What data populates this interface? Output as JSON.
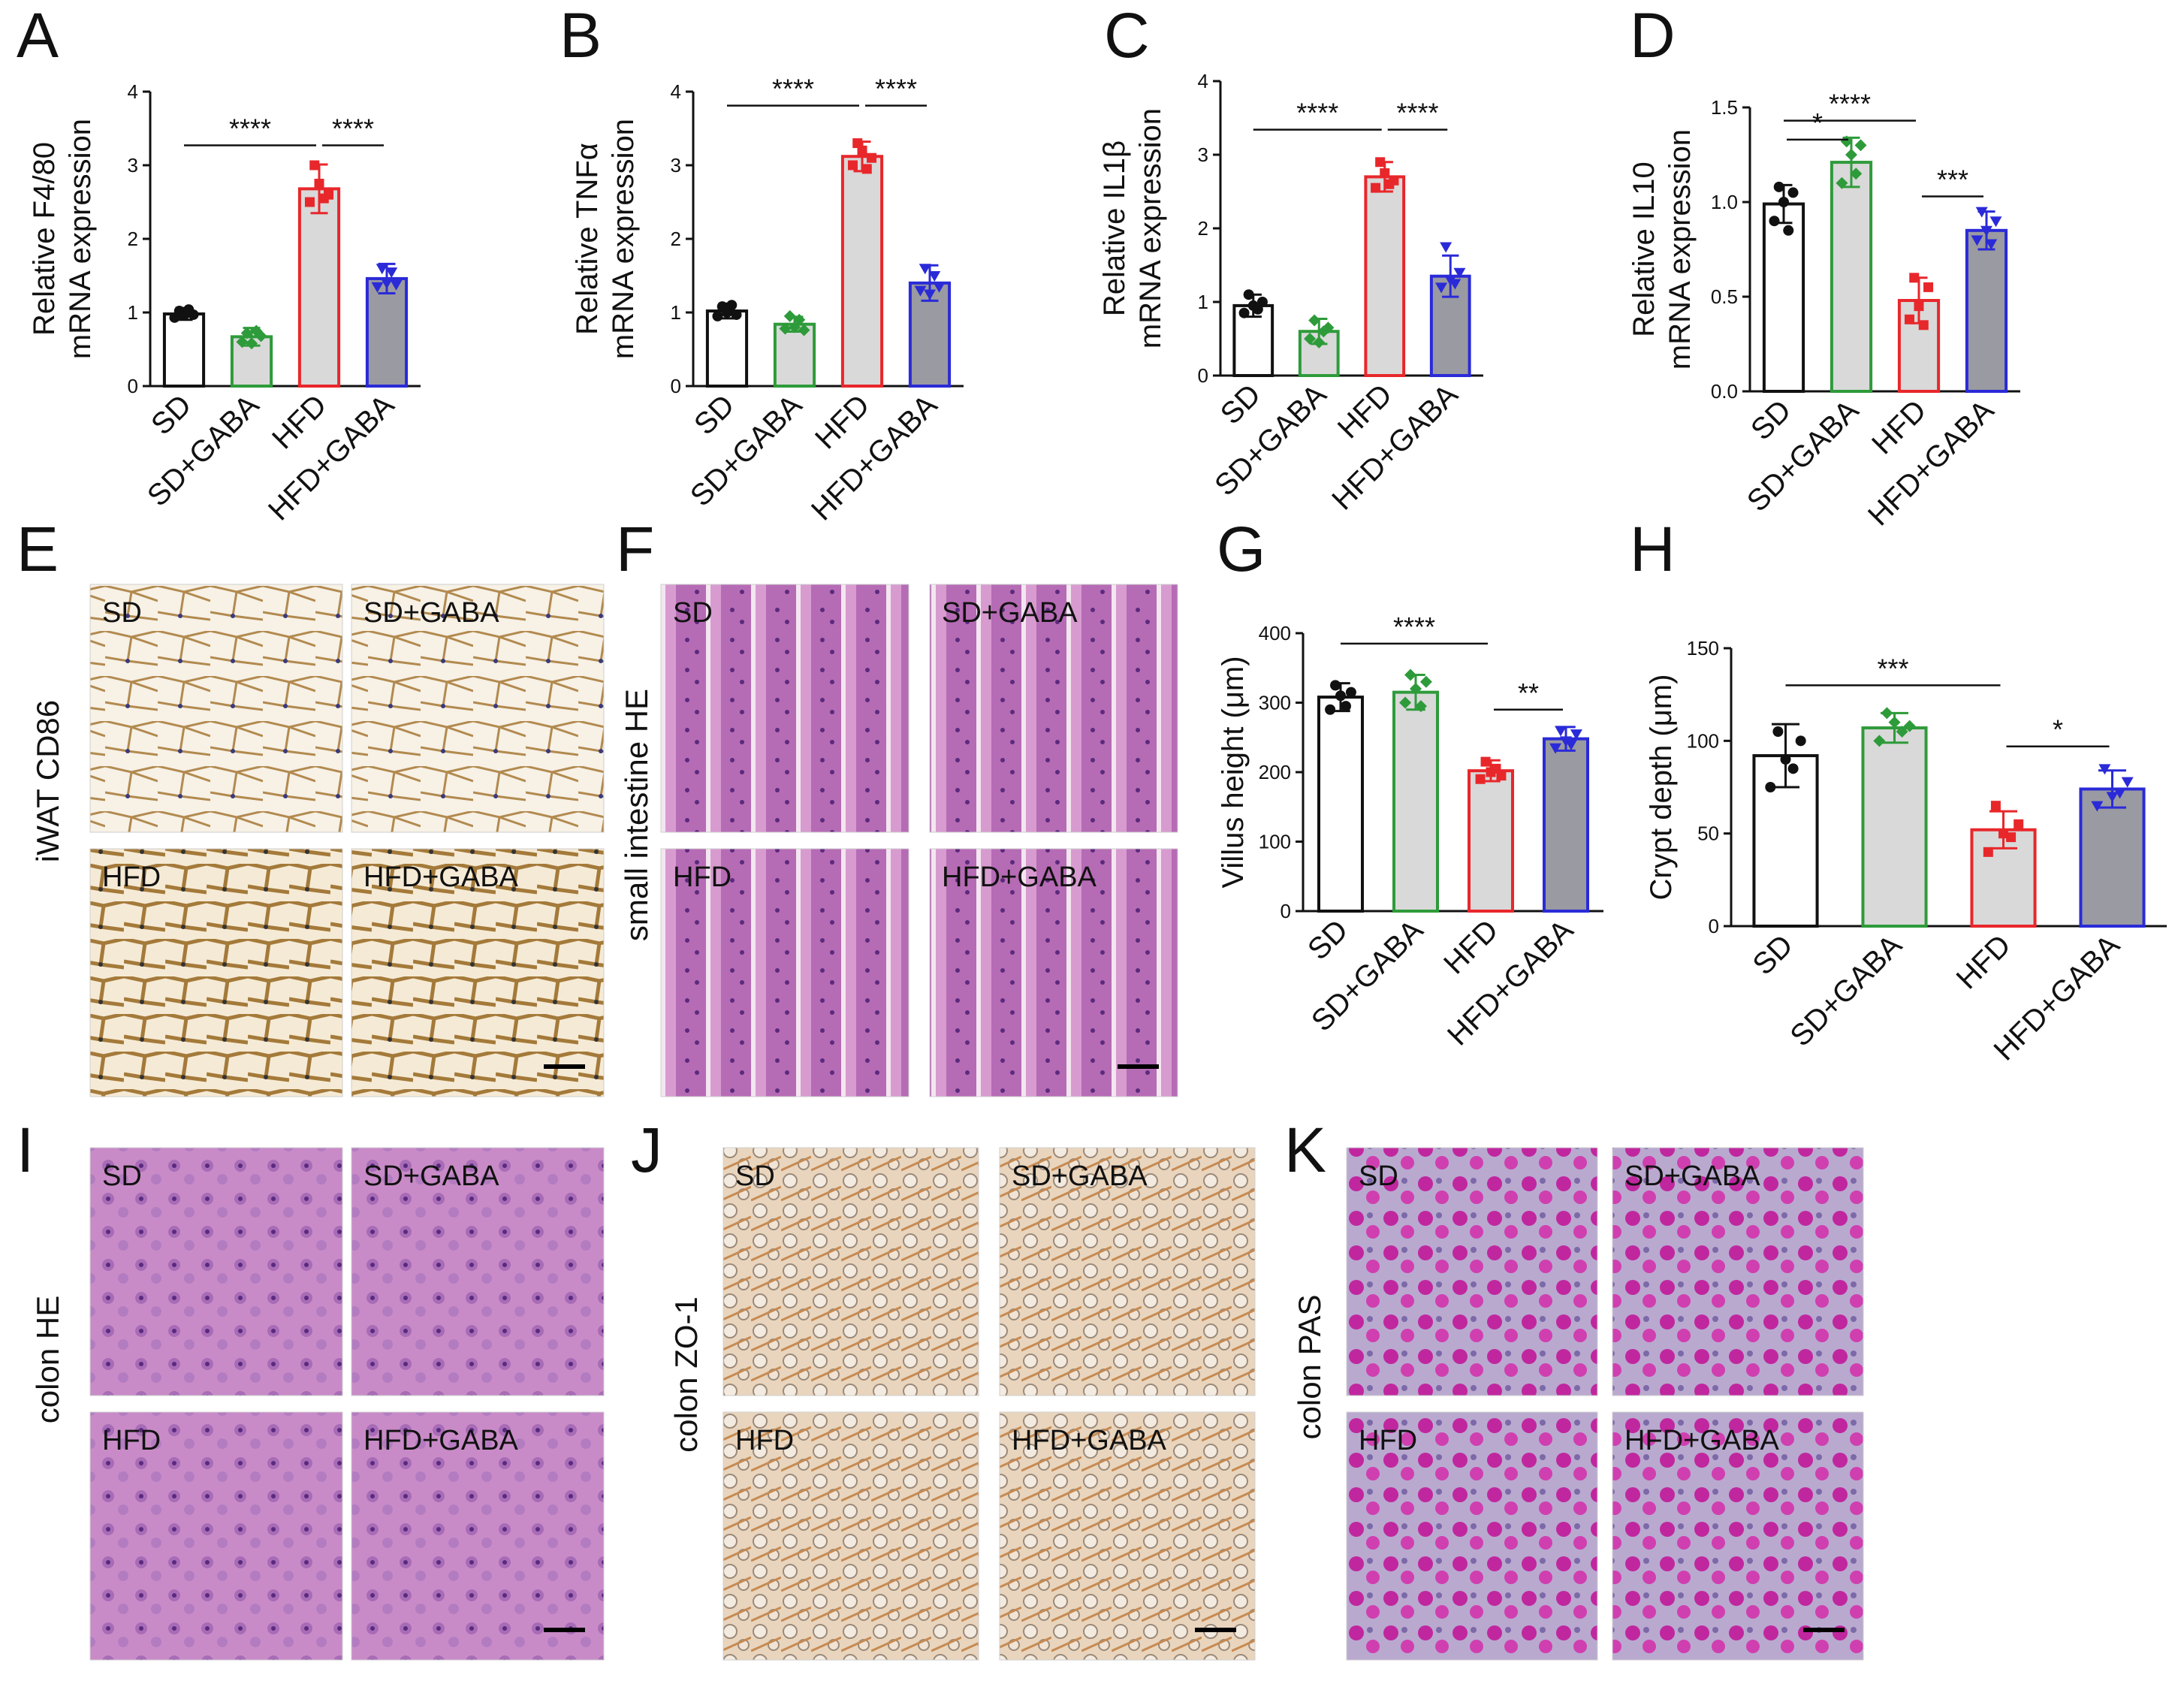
{
  "panel_letters": [
    "A",
    "B",
    "C",
    "D",
    "E",
    "F",
    "G",
    "H",
    "I",
    "J",
    "K"
  ],
  "groups": [
    "SD",
    "SD+GABA",
    "HFD",
    "HFD+GABA"
  ],
  "colors": {
    "SD": "#111111",
    "SD+GABA": "#2e9b3a",
    "HFD": "#e8272b",
    "HFD+GABA": "#2a2ad8",
    "bar_fill_gray": "#d9d9d9",
    "bar_fill_dark": "#9a9aa2",
    "bar_fill_white": "#ffffff"
  },
  "chart_data": [
    {
      "panel": "A",
      "type": "bar",
      "ylabel": [
        "Relative F4/80",
        "mRNA expression"
      ],
      "categories": [
        "SD",
        "SD+GABA",
        "HFD",
        "HFD+GABA"
      ],
      "values": [
        0.98,
        0.67,
        2.68,
        1.46
      ],
      "errors": [
        0.08,
        0.12,
        0.33,
        0.2
      ],
      "points": [
        [
          0.93,
          1.02,
          0.96,
          1.04,
          0.97
        ],
        [
          0.6,
          0.72,
          0.58,
          0.75,
          0.68
        ],
        [
          2.5,
          3.0,
          2.75,
          2.55,
          2.6
        ],
        [
          1.35,
          1.6,
          1.4,
          1.55,
          1.38
        ]
      ],
      "ylim": [
        0,
        4
      ],
      "yticks": [
        0,
        1,
        2,
        3,
        4
      ],
      "ytick_labels": [
        "0",
        "1",
        "2",
        "3",
        "4"
      ],
      "sig": [
        {
          "from": 0,
          "to": 2,
          "label": "****",
          "y": 3.27
        },
        {
          "from": 2,
          "to": 3,
          "label": "****",
          "y": 3.27
        }
      ]
    },
    {
      "panel": "B",
      "type": "bar",
      "ylabel": [
        "Relative TNFα",
        "mRNA expression"
      ],
      "categories": [
        "SD",
        "SD+GABA",
        "HFD",
        "HFD+GABA"
      ],
      "values": [
        1.02,
        0.84,
        3.12,
        1.4
      ],
      "errors": [
        0.1,
        0.1,
        0.2,
        0.24
      ],
      "points": [
        [
          0.95,
          1.08,
          1.0,
          1.1,
          0.97
        ],
        [
          0.78,
          0.95,
          0.8,
          0.9,
          0.76
        ],
        [
          3.0,
          3.3,
          3.2,
          2.95,
          3.1
        ],
        [
          1.3,
          1.6,
          1.25,
          1.5,
          1.35
        ]
      ],
      "ylim": [
        0,
        4
      ],
      "yticks": [
        0,
        1,
        2,
        3,
        4
      ],
      "ytick_labels": [
        "0",
        "1",
        "2",
        "3",
        "4"
      ],
      "sig": [
        {
          "from": 0,
          "to": 2,
          "label": "****",
          "y": 3.81
        },
        {
          "from": 2,
          "to": 3,
          "label": "****",
          "y": 3.81
        }
      ]
    },
    {
      "panel": "C",
      "type": "bar",
      "ylabel": [
        "Relative IL1β",
        "mRNA expression"
      ],
      "categories": [
        "SD",
        "SD+GABA",
        "HFD",
        "HFD+GABA"
      ],
      "values": [
        0.95,
        0.6,
        2.7,
        1.35
      ],
      "errors": [
        0.15,
        0.17,
        0.2,
        0.28
      ],
      "points": [
        [
          0.85,
          1.1,
          0.95,
          0.9,
          1.0
        ],
        [
          0.5,
          0.75,
          0.45,
          0.6,
          0.65
        ],
        [
          2.55,
          2.9,
          2.75,
          2.6,
          2.65
        ],
        [
          1.2,
          1.75,
          1.3,
          1.25,
          1.4
        ]
      ],
      "ylim": [
        0,
        4
      ],
      "yticks": [
        0,
        1,
        2,
        3,
        4
      ],
      "ytick_labels": [
        "0",
        "1",
        "2",
        "3",
        "4"
      ],
      "sig": [
        {
          "from": 0,
          "to": 2,
          "label": "****",
          "y": 3.34
        },
        {
          "from": 2,
          "to": 3,
          "label": "****",
          "y": 3.34
        }
      ]
    },
    {
      "panel": "D",
      "type": "bar",
      "ylabel": [
        "Relative IL10",
        "mRNA expression"
      ],
      "categories": [
        "SD",
        "SD+GABA",
        "HFD",
        "HFD+GABA"
      ],
      "values": [
        0.99,
        1.21,
        0.48,
        0.85
      ],
      "errors": [
        0.1,
        0.13,
        0.12,
        0.1
      ],
      "points": [
        [
          0.9,
          1.08,
          1.0,
          0.85,
          1.05
        ],
        [
          1.1,
          1.32,
          1.25,
          1.15,
          1.3
        ],
        [
          0.38,
          0.6,
          0.45,
          0.35,
          0.55
        ],
        [
          0.8,
          0.95,
          0.85,
          0.78,
          0.9
        ]
      ],
      "ylim": [
        0,
        1.5
      ],
      "yticks": [
        0,
        0.5,
        1.0,
        1.5
      ],
      "ytick_labels": [
        "0.0",
        "0.5",
        "1.0",
        "1.5"
      ],
      "sig": [
        {
          "from": 0,
          "to": 2,
          "label": "****",
          "y": 1.43
        },
        {
          "from": 0,
          "to": 1,
          "label": "*",
          "y": 1.33
        },
        {
          "from": 2,
          "to": 3,
          "label": "***",
          "y": 1.03
        }
      ]
    },
    {
      "panel": "G",
      "type": "bar",
      "ylabel": [
        "Villus height (μm)"
      ],
      "categories": [
        "SD",
        "SD+GABA",
        "HFD",
        "HFD+GABA"
      ],
      "values": [
        308,
        315,
        202,
        248
      ],
      "errors": [
        20,
        25,
        15,
        17
      ],
      "points": [
        [
          290,
          325,
          310,
          295,
          315
        ],
        [
          300,
          340,
          320,
          295,
          330
        ],
        [
          190,
          215,
          200,
          205,
          195
        ],
        [
          235,
          260,
          245,
          240,
          255
        ]
      ],
      "ylim": [
        0,
        400
      ],
      "yticks": [
        0,
        100,
        200,
        300,
        400
      ],
      "ytick_labels": [
        "0",
        "100",
        "200",
        "300",
        "400"
      ],
      "sig": [
        {
          "from": 0,
          "to": 2,
          "label": "****",
          "y": 385
        },
        {
          "from": 2,
          "to": 3,
          "label": "**",
          "y": 290
        }
      ]
    },
    {
      "panel": "H",
      "type": "bar",
      "ylabel": [
        "Crypt depth (μm)"
      ],
      "categories": [
        "SD",
        "SD+GABA",
        "HFD",
        "HFD+GABA"
      ],
      "values": [
        92,
        107,
        52,
        74
      ],
      "errors": [
        17,
        8,
        10,
        10
      ],
      "points": [
        [
          75,
          105,
          90,
          85,
          100
        ],
        [
          100,
          115,
          110,
          105,
          108
        ],
        [
          40,
          65,
          50,
          48,
          55
        ],
        [
          65,
          85,
          70,
          72,
          78
        ]
      ],
      "ylim": [
        0,
        150
      ],
      "yticks": [
        0,
        50,
        100,
        150
      ],
      "ytick_labels": [
        "0",
        "50",
        "100",
        "150"
      ],
      "sig": [
        {
          "from": 0,
          "to": 2,
          "label": "***",
          "y": 130
        },
        {
          "from": 2,
          "to": 3,
          "label": "*",
          "y": 97
        }
      ]
    }
  ],
  "micrographs": [
    {
      "panel": "E",
      "row_label": "iWAT CD86",
      "tiles": [
        "SD",
        "SD+GABA",
        "HFD",
        "HFD+GABA"
      ],
      "stain": "adipose"
    },
    {
      "panel": "F",
      "row_label": "small intestine HE",
      "tiles": [
        "SD",
        "SD+GABA",
        "HFD",
        "HFD+GABA"
      ],
      "stain": "he-villus"
    },
    {
      "panel": "I",
      "row_label": "colon HE",
      "tiles": [
        "SD",
        "SD+GABA",
        "HFD",
        "HFD+GABA"
      ],
      "stain": "he-colon"
    },
    {
      "panel": "J",
      "row_label": "colon ZO-1",
      "tiles": [
        "SD",
        "SD+GABA",
        "HFD",
        "HFD+GABA"
      ],
      "stain": "zo1"
    },
    {
      "panel": "K",
      "row_label": "colon PAS",
      "tiles": [
        "SD",
        "SD+GABA",
        "HFD",
        "HFD+GABA"
      ],
      "stain": "pas"
    }
  ]
}
